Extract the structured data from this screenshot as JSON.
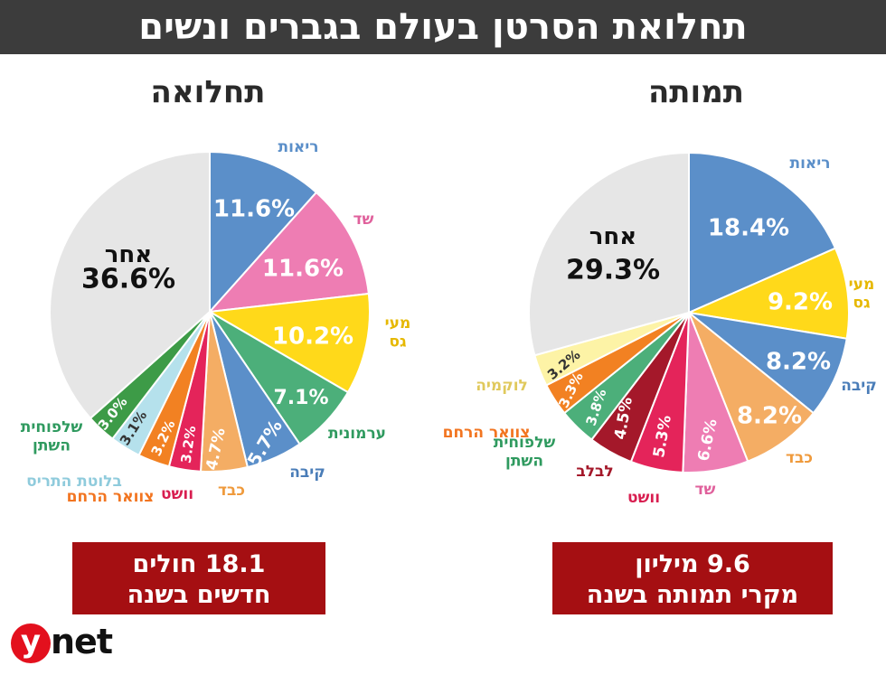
{
  "header": {
    "title": "תחלואת הסרטן בעולם בגברים ונשים"
  },
  "charts": {
    "incidence": {
      "title": "תחלואה",
      "box": {
        "line1": "18.1 חולים",
        "line2": "חדשים בשנה"
      }
    },
    "mortality": {
      "title": "תמותה",
      "box": {
        "line1": "9.6 מיליון",
        "line2": "מקרי תמותה בשנה"
      }
    }
  },
  "logo": {
    "y": "y",
    "net": "net"
  },
  "chart_data": [
    {
      "type": "pie",
      "title": "תחלואה",
      "slices": [
        {
          "label": [
            "ריאות"
          ],
          "value": 11.6,
          "display": "11.6%",
          "color": "#5b8fc9",
          "label_color": "#5b8fc9"
        },
        {
          "label": [
            "שד"
          ],
          "value": 11.6,
          "display": "11.6%",
          "color": "#ee7db3",
          "label_color": "#e0619c"
        },
        {
          "label": [
            "מעי",
            "גס"
          ],
          "value": 10.2,
          "display": "10.2%",
          "color": "#ffd91a",
          "label_color": "#e6b800"
        },
        {
          "label": [
            "ערמונית"
          ],
          "value": 7.1,
          "display": "7.1%",
          "color": "#4caf7a",
          "label_color": "#2f9a5f"
        },
        {
          "label": [
            "קיבה"
          ],
          "value": 5.7,
          "display": "5.7%",
          "color": "#5b8fc9",
          "label_color": "#4a7db8"
        },
        {
          "label": [
            "כבד"
          ],
          "value": 4.7,
          "display": "4.7%",
          "color": "#f4ad64",
          "label_color": "#ef9a3c"
        },
        {
          "label": [
            "וושט"
          ],
          "value": 3.2,
          "display": "3.2%",
          "color": "#e4245a",
          "label_color": "#d81e50"
        },
        {
          "label": [
            "צוואר הרחם"
          ],
          "value": 3.2,
          "display": "3.2%",
          "color": "#f28122",
          "label_color": "#f27521"
        },
        {
          "label": [
            "בלוטת התריס"
          ],
          "value": 3.1,
          "display": "3.1%",
          "color": "#b5e1ec",
          "label_color": "#8fcbdc"
        },
        {
          "label": [
            "שלפוחית",
            "השתן"
          ],
          "value": 3.0,
          "display": "3.0%",
          "color": "#3d9b47",
          "label_color": "#2f9a5f"
        },
        {
          "label": [
            "אחר"
          ],
          "value": 36.6,
          "display": "36.6%",
          "color": "#e6e6e6",
          "label_color": "#111111"
        }
      ]
    },
    {
      "type": "pie",
      "title": "תמותה",
      "slices": [
        {
          "label": [
            "ריאות"
          ],
          "value": 18.4,
          "display": "18.4%",
          "color": "#5b8fc9",
          "label_color": "#5b8fc9"
        },
        {
          "label": [
            "מעי",
            "גס"
          ],
          "value": 9.2,
          "display": "9.2%",
          "color": "#ffd91a",
          "label_color": "#e6b800"
        },
        {
          "label": [
            "קיבה"
          ],
          "value": 8.2,
          "display": "8.2%",
          "color": "#5b8fc9",
          "label_color": "#4a7db8"
        },
        {
          "label": [
            "כבד"
          ],
          "value": 8.2,
          "display": "8.2%",
          "color": "#f4ad64",
          "label_color": "#ef9a3c"
        },
        {
          "label": [
            "שד"
          ],
          "value": 6.6,
          "display": "6.6%",
          "color": "#ee7db3",
          "label_color": "#e0619c"
        },
        {
          "label": [
            "וושט"
          ],
          "value": 5.3,
          "display": "5.3%",
          "color": "#e4245a",
          "label_color": "#d81e50"
        },
        {
          "label": [
            "לבלב"
          ],
          "value": 4.5,
          "display": "4.5%",
          "color": "#a4182a",
          "label_color": "#a4182a"
        },
        {
          "label": [
            "שלפוחית",
            "השתן"
          ],
          "value": 3.8,
          "display": "3.8%",
          "color": "#4caf7a",
          "label_color": "#2f9a5f"
        },
        {
          "label": [
            "צוואר הרחם"
          ],
          "value": 3.3,
          "display": "3.3%",
          "color": "#f28122",
          "label_color": "#f27521"
        },
        {
          "label": [
            "לוקמיה"
          ],
          "value": 3.2,
          "display": "3.2%",
          "color": "#fdf3a6",
          "label_color": "#e0c95c"
        },
        {
          "label": [
            "אחר"
          ],
          "value": 29.3,
          "display": "29.3%",
          "color": "#e6e6e6",
          "label_color": "#111111"
        }
      ]
    }
  ]
}
